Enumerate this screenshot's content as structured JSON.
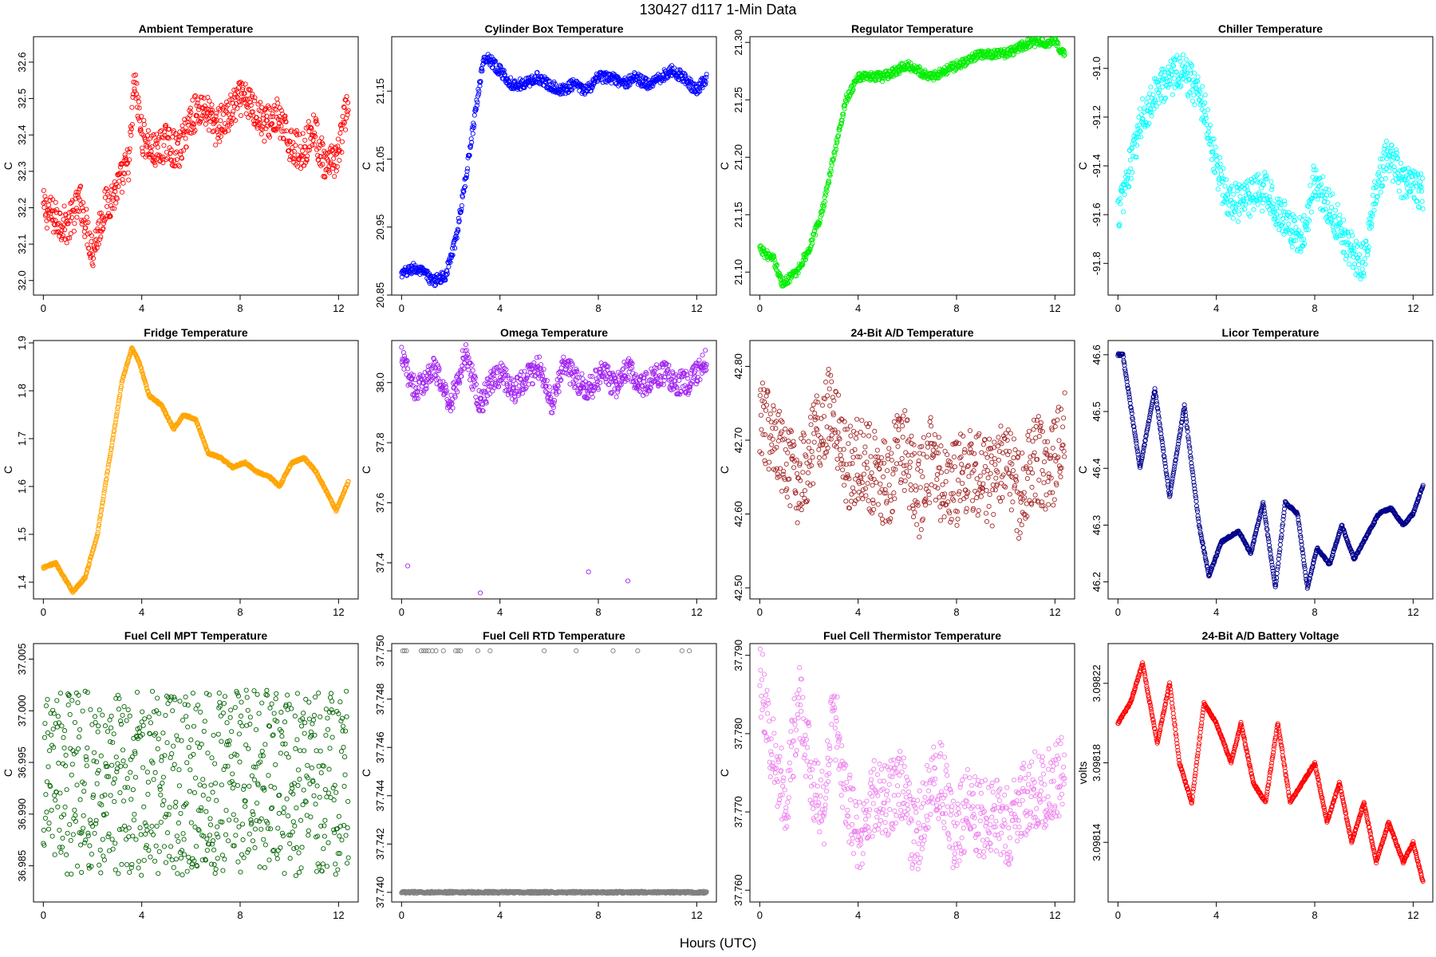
{
  "page": {
    "main_title": "130427    d117    1-Min Data",
    "x_axis_label": "Hours (UTC)"
  },
  "chart_data": [
    {
      "type": "scatter",
      "title": "Ambient Temperature",
      "ylabel": "C",
      "color": "#ff0000",
      "xlim": [
        -0.4,
        12.8
      ],
      "xticks": [
        0,
        4,
        8,
        12
      ],
      "xtick_labels": [
        "0",
        "4",
        "8",
        "12"
      ],
      "ylim": [
        31.96,
        32.67
      ],
      "yticks": [
        32.0,
        32.1,
        32.2,
        32.3,
        32.4,
        32.5,
        32.6
      ],
      "ytick_labels": [
        "32.0",
        "32.1",
        "32.2",
        "32.3",
        "32.4",
        "32.5",
        "32.6"
      ],
      "marker": "open-circle",
      "sampling_minutes": 1,
      "x": [
        0,
        0.5,
        1,
        1.5,
        2,
        2.5,
        3,
        3.5,
        3.7,
        4,
        4.5,
        5,
        5.5,
        6,
        6.5,
        7,
        7.5,
        8,
        8.5,
        9,
        9.5,
        10,
        10.5,
        11,
        11.5,
        12,
        12.4
      ],
      "y": [
        32.2,
        32.17,
        32.15,
        32.22,
        32.08,
        32.2,
        32.25,
        32.33,
        32.55,
        32.4,
        32.35,
        32.38,
        32.35,
        32.45,
        32.48,
        32.42,
        32.45,
        32.5,
        32.48,
        32.43,
        32.45,
        32.38,
        32.35,
        32.42,
        32.3,
        32.35,
        32.5
      ],
      "spread": 0.05
    },
    {
      "type": "scatter",
      "title": "Cylinder Box Temperature",
      "ylabel": "C",
      "color": "#0000ff",
      "xlim": [
        -0.4,
        12.8
      ],
      "xticks": [
        0,
        4,
        8,
        12
      ],
      "xtick_labels": [
        "0",
        "4",
        "8",
        "12"
      ],
      "ylim": [
        20.85,
        21.23
      ],
      "yticks": [
        20.85,
        20.95,
        21.05,
        21.15
      ],
      "ytick_labels": [
        "20.85",
        "20.95",
        "21.05",
        "21.15"
      ],
      "marker": "open-circle",
      "sampling_minutes": 1,
      "x": [
        0,
        0.5,
        1,
        1.3,
        1.8,
        2.2,
        2.6,
        3.0,
        3.3,
        3.5,
        4,
        4.5,
        5,
        5.5,
        6,
        6.5,
        7,
        7.5,
        8,
        8.5,
        9,
        9.5,
        10,
        10.5,
        11,
        11.5,
        12,
        12.4
      ],
      "y": [
        20.88,
        20.89,
        20.88,
        20.87,
        20.88,
        20.93,
        21.02,
        21.12,
        21.19,
        21.2,
        21.18,
        21.16,
        21.16,
        21.17,
        21.16,
        21.15,
        21.16,
        21.15,
        21.17,
        21.17,
        21.16,
        21.17,
        21.16,
        21.17,
        21.18,
        21.17,
        21.15,
        21.17
      ],
      "spread": 0.008
    },
    {
      "type": "scatter",
      "title": "Regulator Temperature",
      "ylabel": "C",
      "color": "#00ee00",
      "xlim": [
        -0.4,
        12.8
      ],
      "xticks": [
        0,
        4,
        8,
        12
      ],
      "xtick_labels": [
        "0",
        "4",
        "8",
        "12"
      ],
      "ylim": [
        21.08,
        21.305
      ],
      "yticks": [
        21.1,
        21.15,
        21.2,
        21.25,
        21.3
      ],
      "ytick_labels": [
        "21.10",
        "21.15",
        "21.20",
        "21.25",
        "21.30"
      ],
      "marker": "open-circle",
      "sampling_minutes": 1,
      "x": [
        0,
        0.6,
        0.9,
        1.5,
        2.0,
        2.5,
        3.0,
        3.5,
        4,
        5,
        6,
        7,
        8,
        9,
        10,
        11,
        12,
        12.4
      ],
      "y": [
        21.12,
        21.11,
        21.09,
        21.1,
        21.12,
        21.15,
        21.2,
        21.25,
        21.27,
        21.27,
        21.28,
        21.27,
        21.28,
        21.29,
        21.29,
        21.3,
        21.3,
        21.29
      ],
      "spread": 0.004
    },
    {
      "type": "scatter",
      "title": "Chiller Temperature",
      "ylabel": "C",
      "color": "#00ffff",
      "xlim": [
        -0.4,
        12.8
      ],
      "xticks": [
        0,
        4,
        8,
        12
      ],
      "xtick_labels": [
        "0",
        "4",
        "8",
        "12"
      ],
      "ylim": [
        -91.93,
        -90.87
      ],
      "yticks": [
        -91.8,
        -91.6,
        -91.4,
        -91.2,
        -91.0
      ],
      "ytick_labels": [
        "-91.8",
        "-91.6",
        "-91.4",
        "-91.2",
        "-91.0"
      ],
      "marker": "open-circle",
      "sampling_minutes": 1,
      "x": [
        0,
        0.5,
        1,
        1.5,
        2,
        2.5,
        3,
        3.5,
        4,
        4.5,
        5,
        6,
        7,
        7.5,
        8,
        8.5,
        9,
        9.5,
        10,
        10.5,
        11,
        11.5,
        12,
        12.4
      ],
      "y": [
        -91.6,
        -91.4,
        -91.2,
        -91.1,
        -91.05,
        -91.0,
        -91.05,
        -91.15,
        -91.4,
        -91.55,
        -91.55,
        -91.5,
        -91.65,
        -91.7,
        -91.45,
        -91.55,
        -91.65,
        -91.75,
        -91.8,
        -91.5,
        -91.35,
        -91.45,
        -91.5,
        -91.5
      ],
      "spread": 0.08
    },
    {
      "type": "scatter",
      "title": "Fridge Temperature",
      "ylabel": "C",
      "color": "#ffa500",
      "xlim": [
        -0.4,
        12.8
      ],
      "xticks": [
        0,
        4,
        8,
        12
      ],
      "xtick_labels": [
        "0",
        "4",
        "8",
        "12"
      ],
      "ylim": [
        1.365,
        1.905
      ],
      "yticks": [
        1.4,
        1.5,
        1.6,
        1.7,
        1.8,
        1.9
      ],
      "ytick_labels": [
        "1.4",
        "1.5",
        "1.6",
        "1.7",
        "1.8",
        "1.9"
      ],
      "marker": "open-circle",
      "sampling_minutes": 1,
      "x": [
        0,
        0.5,
        1.2,
        1.7,
        2.2,
        2.7,
        3.2,
        3.6,
        3.9,
        4.3,
        4.8,
        5.3,
        5.7,
        6.2,
        6.7,
        7.2,
        7.7,
        8.2,
        8.7,
        9.2,
        9.6,
        10.1,
        10.6,
        11.1,
        11.5,
        11.9,
        12.4
      ],
      "y": [
        1.43,
        1.44,
        1.38,
        1.41,
        1.5,
        1.66,
        1.82,
        1.89,
        1.86,
        1.79,
        1.77,
        1.72,
        1.75,
        1.74,
        1.67,
        1.66,
        1.64,
        1.65,
        1.63,
        1.62,
        1.6,
        1.65,
        1.66,
        1.63,
        1.59,
        1.55,
        1.61
      ],
      "spread": 0.0
    },
    {
      "type": "scatter",
      "title": "Omega Temperature",
      "ylabel": "C",
      "color": "#a020f0",
      "xlim": [
        -0.4,
        12.8
      ],
      "xticks": [
        0,
        4,
        8,
        12
      ],
      "xtick_labels": [
        "0",
        "4",
        "8",
        "12"
      ],
      "ylim": [
        37.28,
        38.14
      ],
      "yticks": [
        37.4,
        37.6,
        37.8,
        38.0
      ],
      "ytick_labels": [
        "37.4",
        "37.6",
        "37.8",
        "38.0"
      ],
      "marker": "open-circle",
      "sampling_minutes": 1,
      "x": [
        0,
        0.6,
        1.3,
        2.0,
        2.6,
        3.2,
        3.6,
        4.0,
        4.6,
        5.1,
        5.6,
        6.1,
        6.6,
        7.2,
        7.7,
        8.2,
        8.7,
        9.2,
        9.7,
        10.2,
        10.7,
        11.2,
        11.7,
        12.4
      ],
      "y": [
        38.08,
        37.97,
        38.05,
        37.93,
        38.1,
        37.92,
        38.0,
        38.03,
        37.97,
        38.02,
        38.05,
        37.93,
        38.06,
        38.0,
        37.98,
        38.04,
        37.98,
        38.05,
        37.98,
        38.02,
        38.03,
        38.0,
        38.0,
        38.08
      ],
      "spread": 0.04,
      "outliers": [
        [
          0.25,
          37.39
        ],
        [
          3.2,
          37.3
        ],
        [
          7.6,
          37.37
        ],
        [
          9.2,
          37.34
        ]
      ]
    },
    {
      "type": "scatter",
      "title": "24-Bit A/D Temperature",
      "ylabel": "C",
      "color": "#a52a2a",
      "xlim": [
        -0.4,
        12.8
      ],
      "xticks": [
        0,
        4,
        8,
        12
      ],
      "xtick_labels": [
        "0",
        "4",
        "8",
        "12"
      ],
      "ylim": [
        42.485,
        42.835
      ],
      "yticks": [
        42.5,
        42.6,
        42.7,
        42.8
      ],
      "ytick_labels": [
        "42.50",
        "42.60",
        "42.70",
        "42.80"
      ],
      "marker": "open-circle",
      "sampling_minutes": 1,
      "x": [
        0,
        0.8,
        1.5,
        2.2,
        2.9,
        3.5,
        4,
        4.6,
        5.2,
        5.8,
        6.4,
        7,
        7.6,
        8.2,
        8.8,
        9.4,
        10,
        10.6,
        11.2,
        11.8,
        12.4
      ],
      "y": [
        42.74,
        42.68,
        42.64,
        42.7,
        42.75,
        42.66,
        42.68,
        42.66,
        42.64,
        42.7,
        42.62,
        42.68,
        42.63,
        42.65,
        42.66,
        42.64,
        42.67,
        42.62,
        42.68,
        42.65,
        42.72
      ],
      "spread": 0.06
    },
    {
      "type": "scatter",
      "title": "Licor Temperature",
      "ylabel": "C",
      "color": "#00008b",
      "xlim": [
        -0.4,
        12.8
      ],
      "xticks": [
        0,
        4,
        8,
        12
      ],
      "xtick_labels": [
        "0",
        "4",
        "8",
        "12"
      ],
      "ylim": [
        46.17,
        46.625
      ],
      "yticks": [
        46.2,
        46.3,
        46.4,
        46.5,
        46.6
      ],
      "ytick_labels": [
        "46.2",
        "46.3",
        "46.4",
        "46.5",
        "46.6"
      ],
      "marker": "open-circle",
      "sampling_minutes": 1,
      "x": [
        0,
        0.2,
        0.9,
        1.5,
        2.1,
        2.7,
        3.3,
        3.7,
        4.2,
        4.9,
        5.4,
        5.9,
        6.4,
        6.8,
        7.3,
        7.7,
        8.1,
        8.6,
        9.1,
        9.6,
        10.1,
        10.6,
        11.1,
        11.6,
        12.0,
        12.4
      ],
      "y": [
        46.6,
        46.6,
        46.4,
        46.54,
        46.35,
        46.51,
        46.3,
        46.21,
        46.27,
        46.29,
        46.25,
        46.34,
        46.19,
        46.34,
        46.32,
        46.19,
        46.26,
        46.23,
        46.3,
        46.24,
        46.28,
        46.32,
        46.33,
        46.3,
        46.32,
        46.37
      ],
      "spread": 0.0
    },
    {
      "type": "scatter",
      "title": "Fuel Cell MPT Temperature",
      "ylabel": "C",
      "color": "#006400",
      "xlim": [
        -0.4,
        12.8
      ],
      "xticks": [
        0,
        4,
        8,
        12
      ],
      "xtick_labels": [
        "0",
        "4",
        "8",
        "12"
      ],
      "ylim": [
        36.9815,
        37.0065
      ],
      "yticks": [
        36.985,
        36.99,
        36.995,
        37.0,
        37.005
      ],
      "ytick_labels": [
        "36.985",
        "36.990",
        "36.995",
        "37.000",
        "37.005"
      ],
      "marker": "open-circle",
      "sampling_minutes": 1,
      "x": [
        0,
        12.4
      ],
      "y": [
        36.993,
        36.993
      ],
      "spread": 0.009
    },
    {
      "type": "scatter",
      "title": "Fuel Cell RTD Temperature",
      "ylabel": "C",
      "color": "#808080",
      "xlim": [
        -0.4,
        12.8
      ],
      "xticks": [
        0,
        4,
        8,
        12
      ],
      "xtick_labels": [
        "0",
        "4",
        "8",
        "12"
      ],
      "ylim": [
        37.7396,
        37.7503
      ],
      "yticks": [
        37.74,
        37.742,
        37.744,
        37.746,
        37.748,
        37.75
      ],
      "ytick_labels": [
        "37.740",
        "37.742",
        "37.744",
        "37.746",
        "37.748",
        "37.750"
      ],
      "marker": "open-circle",
      "sampling_minutes": 1,
      "x": [
        0,
        12.4
      ],
      "y": [
        37.74,
        37.74
      ],
      "spread": 0.0,
      "outliers": [
        [
          0.05,
          37.75
        ],
        [
          0.12,
          37.75
        ],
        [
          0.2,
          37.75
        ],
        [
          0.8,
          37.75
        ],
        [
          0.9,
          37.75
        ],
        [
          1.0,
          37.75
        ],
        [
          1.1,
          37.75
        ],
        [
          1.25,
          37.75
        ],
        [
          1.4,
          37.75
        ],
        [
          1.7,
          37.75
        ],
        [
          2.2,
          37.75
        ],
        [
          2.3,
          37.75
        ],
        [
          2.4,
          37.75
        ],
        [
          3.1,
          37.75
        ],
        [
          3.6,
          37.75
        ],
        [
          5.8,
          37.75
        ],
        [
          7.1,
          37.75
        ],
        [
          8.6,
          37.75
        ],
        [
          9.6,
          37.75
        ],
        [
          11.4,
          37.75
        ],
        [
          11.7,
          37.75
        ]
      ]
    },
    {
      "type": "scatter",
      "title": "Fuel Cell Thermistor Temperature",
      "ylabel": "C",
      "color": "#ee82ee",
      "xlim": [
        -0.4,
        12.8
      ],
      "xticks": [
        0,
        4,
        8,
        12
      ],
      "xtick_labels": [
        "0",
        "4",
        "8",
        "12"
      ],
      "ylim": [
        37.7585,
        37.7915
      ],
      "yticks": [
        37.76,
        37.77,
        37.78,
        37.79
      ],
      "ytick_labels": [
        "37.760",
        "37.770",
        "37.780",
        "37.790"
      ],
      "marker": "open-circle",
      "sampling_minutes": 1,
      "x": [
        0,
        0.6,
        1.1,
        1.6,
        2.1,
        2.6,
        3.0,
        3.5,
        4.0,
        4.6,
        5.2,
        5.8,
        6.3,
        6.9,
        7.4,
        7.9,
        8.5,
        9.0,
        9.6,
        10.1,
        10.6,
        11.1,
        11.6,
        12.1,
        12.4
      ],
      "y": [
        37.788,
        37.776,
        37.772,
        37.785,
        37.774,
        37.77,
        37.783,
        37.772,
        37.766,
        37.772,
        37.771,
        37.774,
        37.766,
        37.773,
        37.774,
        37.767,
        37.771,
        37.769,
        37.77,
        37.768,
        37.771,
        37.773,
        37.773,
        37.774,
        37.776
      ],
      "spread": 0.005
    },
    {
      "type": "scatter",
      "title": "24-Bit A/D Battery Voltage",
      "ylabel": "volts",
      "color": "#ff0000",
      "xlim": [
        -0.4,
        12.8
      ],
      "xticks": [
        0,
        4,
        8,
        12
      ],
      "xtick_labels": [
        "0",
        "4",
        "8",
        "12"
      ],
      "ylim": [
        3.09811,
        3.09824
      ],
      "yticks": [
        3.09814,
        3.09818,
        3.09822
      ],
      "ytick_labels": [
        "3.09814",
        "3.09818",
        "3.09822"
      ],
      "marker": "open-circle",
      "sampling_minutes": 1,
      "x": [
        0,
        0.5,
        1.0,
        1.6,
        2.1,
        2.5,
        3.0,
        3.5,
        4.0,
        4.6,
        5.0,
        5.5,
        6.0,
        6.5,
        7.0,
        7.5,
        8.0,
        8.5,
        9.0,
        9.5,
        10.0,
        10.5,
        11.0,
        11.6,
        12.0,
        12.4
      ],
      "y": [
        3.0982,
        3.09821,
        3.09823,
        3.09819,
        3.09822,
        3.09818,
        3.09816,
        3.09821,
        3.0982,
        3.09818,
        3.0982,
        3.09817,
        3.09816,
        3.0982,
        3.09816,
        3.09817,
        3.09818,
        3.09815,
        3.09817,
        3.09814,
        3.09816,
        3.09813,
        3.09815,
        3.09813,
        3.09814,
        3.09812
      ],
      "spread": 0.0
    }
  ]
}
